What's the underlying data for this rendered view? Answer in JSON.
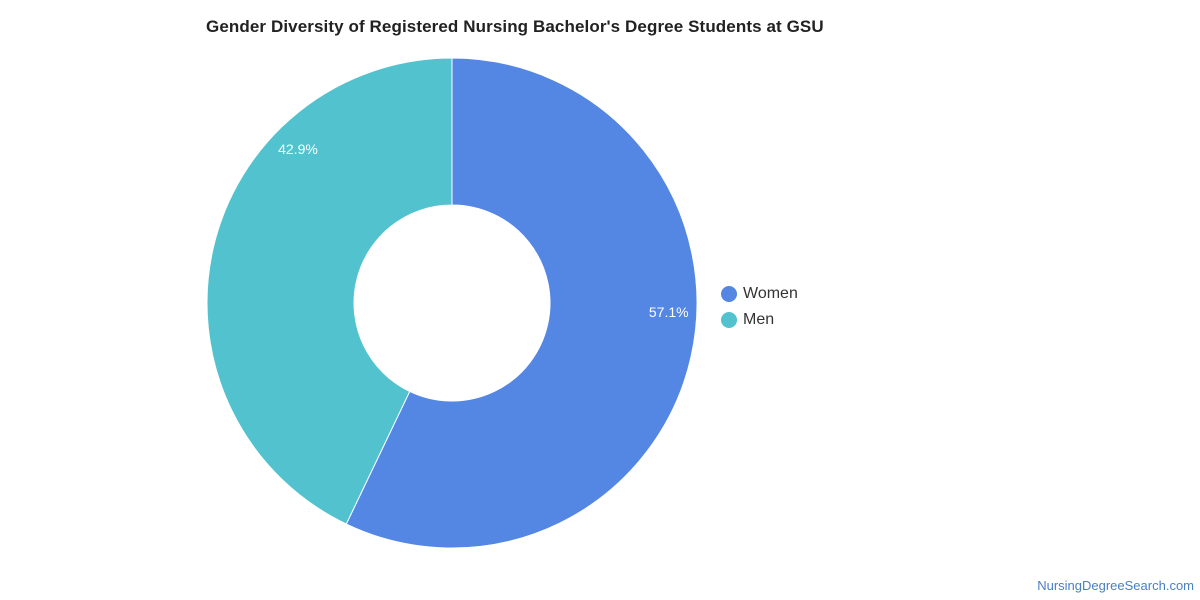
{
  "title": "Gender Diversity of Registered Nursing Bachelor's Degree Students at GSU",
  "chart_data": {
    "type": "pie",
    "variant": "donut",
    "title": "Gender Diversity of Registered Nursing Bachelor's Degree Students at GSU",
    "categories": [
      "Women",
      "Men"
    ],
    "values": [
      57.1,
      42.9
    ],
    "labels": [
      "57.1%",
      "42.9%"
    ],
    "colors": [
      "#5486e3",
      "#52c2cf"
    ],
    "legend_position": "right"
  },
  "legend": {
    "items": [
      {
        "label": "Women",
        "color": "#5486e3"
      },
      {
        "label": "Men",
        "color": "#52c2cf"
      }
    ]
  },
  "watermark": "NursingDegreeSearch.com"
}
